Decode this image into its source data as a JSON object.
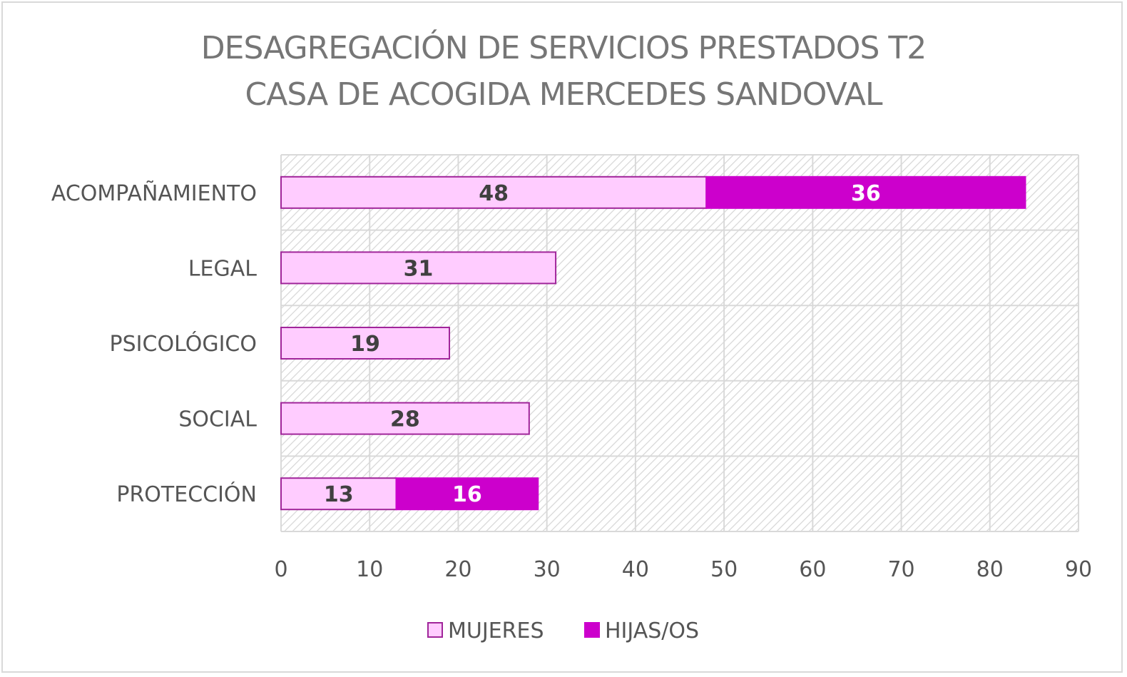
{
  "chart_data": {
    "type": "bar",
    "orientation": "horizontal",
    "stacked": true,
    "title": [
      "DESAGREGACIÓN DE SERVICIOS PRESTADOS T2",
      "CASA DE ACOGIDA MERCEDES SANDOVAL"
    ],
    "categories": [
      "ACOMPAÑAMIENTO",
      "LEGAL",
      "PSICOLÓGICO",
      "SOCIAL",
      "PROTECCIÓN"
    ],
    "series": [
      {
        "name": "MUJERES",
        "values": [
          48,
          31,
          19,
          28,
          13
        ],
        "color": "#ffccff",
        "border": "#a0259a",
        "label_color": "#404040"
      },
      {
        "name": "HIJAS/OS",
        "values": [
          36,
          null,
          null,
          null,
          16
        ],
        "color": "#cc00cc",
        "border": "#cc00cc",
        "label_color": "#ffffff"
      }
    ],
    "xlim": [
      0,
      90
    ],
    "xticks": [
      0,
      10,
      20,
      30,
      40,
      50,
      60,
      70,
      80,
      90
    ],
    "grid": true,
    "legend": "bottom"
  }
}
